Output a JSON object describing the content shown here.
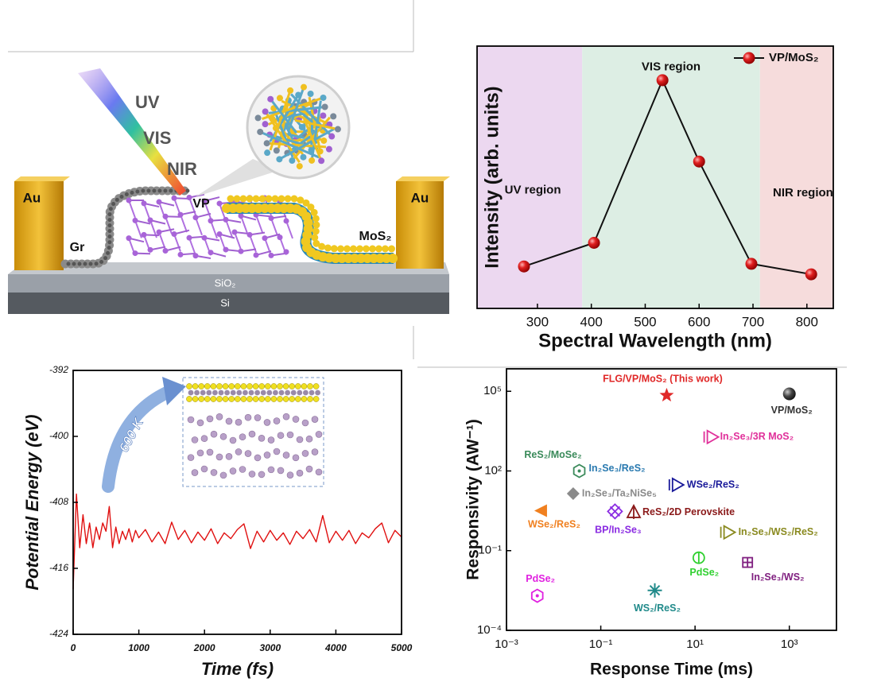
{
  "schematic": {
    "uv": "UV",
    "vis": "VIS",
    "nir": "NIR",
    "au_left": "Au",
    "au_right": "Au",
    "vp": "VP",
    "gr": "Gr",
    "mos2": "MoS₂",
    "sio2": "SiO₂",
    "si": "Si"
  },
  "chart_data": [
    {
      "type": "line",
      "x_label": "Spectral Wavelength (nm)",
      "y_label": "Intensity (arb. units)",
      "x": [
        275,
        405,
        532,
        600,
        697,
        808
      ],
      "series": [
        {
          "name": "VP/MoS₂",
          "color": "#e01b1b",
          "line_color": "#111111",
          "values": [
            16,
            25,
            87,
            56,
            17,
            13
          ]
        }
      ],
      "xlim": [
        188,
        849
      ],
      "ylim": [
        0,
        100
      ],
      "xticks": [
        300,
        400,
        500,
        600,
        700,
        800
      ],
      "markers": true,
      "legend": "upper right",
      "regions": [
        {
          "label": "UV region",
          "start": 188,
          "end": 383,
          "color": "#ecd8f0"
        },
        {
          "label": "VIS region",
          "start": 383,
          "end": 713,
          "color": "#ddeee4"
        },
        {
          "label": "NIR region",
          "start": 713,
          "end": 849,
          "color": "#f6dcdc"
        }
      ]
    },
    {
      "type": "line",
      "x_label": "Time (fs)",
      "y_label": "Potential Energy (eV)",
      "annotation": "600 K",
      "x": [
        0,
        50,
        100,
        150,
        200,
        250,
        300,
        350,
        400,
        450,
        500,
        550,
        600,
        650,
        700,
        750,
        800,
        850,
        900,
        950,
        1000,
        1100,
        1200,
        1300,
        1400,
        1500,
        1600,
        1700,
        1800,
        1900,
        2000,
        2100,
        2200,
        2300,
        2400,
        2500,
        2600,
        2700,
        2800,
        2900,
        3000,
        3100,
        3200,
        3300,
        3400,
        3500,
        3600,
        3700,
        3800,
        3900,
        4000,
        4100,
        4200,
        4300,
        4400,
        4500,
        4600,
        4700,
        4800,
        4900,
        5000
      ],
      "series": [
        {
          "color": "#e01010",
          "values": [
            -418.5,
            -407,
            -413.5,
            -409.5,
            -413,
            -410.5,
            -413.5,
            -411,
            -412.5,
            -410.5,
            -411.5,
            -408.5,
            -413.5,
            -411,
            -413,
            -411.5,
            -412.5,
            -411.2,
            -412.8,
            -411.4,
            -412.3,
            -411.3,
            -412.8,
            -411.6,
            -413.0,
            -410.4,
            -412.5,
            -411.4,
            -412.9,
            -411.6,
            -412.6,
            -411.2,
            -413.0,
            -411.7,
            -412.4,
            -411.3,
            -410.6,
            -413.6,
            -411.5,
            -412.8,
            -411.4,
            -412.6,
            -411.7,
            -413.1,
            -411.5,
            -412.4,
            -411.3,
            -412.8,
            -409.6,
            -412.9,
            -411.5,
            -412.6,
            -411.4,
            -413.0,
            -411.7,
            -412.3,
            -411.2,
            -410.5,
            -412.9,
            -411.4,
            -412.2
          ]
        }
      ],
      "xlim": [
        0,
        5000
      ],
      "ylim": [
        -424,
        -392
      ],
      "xticks": [
        0,
        1000,
        2000,
        3000,
        4000,
        5000
      ],
      "yticks": [
        -424,
        -416,
        -408,
        -400,
        -392
      ]
    },
    {
      "type": "scatter",
      "x_label": "Response Time (ms)",
      "y_label": "Responsivity (AW⁻¹)",
      "xscale": "log",
      "yscale": "log",
      "xlim": [
        0.001,
        10000
      ],
      "ylim": [
        0.0001,
        700000
      ],
      "xticks": [
        {
          "value": 0.001,
          "label": "10⁻³"
        },
        {
          "value": 0.1,
          "label": "10⁻¹"
        },
        {
          "value": 10,
          "label": "10¹"
        },
        {
          "value": 1000,
          "label": "10³"
        }
      ],
      "yticks": [
        {
          "value": 0.0001,
          "label": "10⁻⁴"
        },
        {
          "value": 0.1,
          "label": "10⁻¹"
        },
        {
          "value": 100,
          "label": "10²"
        },
        {
          "value": 100000,
          "label": "10⁵"
        }
      ],
      "points": [
        {
          "name": "FLG/VP/MoS₂ (This work)",
          "x": 2.5,
          "y": 70000,
          "color": "#e02828",
          "marker": "star"
        },
        {
          "name": "VP/MoS₂",
          "x": 1000,
          "y": 80000,
          "color": "#333333",
          "marker": "sphere"
        },
        {
          "name": "In₂Se₃/3R MoS₂",
          "x": 23,
          "y": 1900,
          "color": "#e0309a",
          "marker": "tri-right-open"
        },
        {
          "name": "ReS₂/MoSe₂",
          "x": 0.035,
          "y": 100,
          "color": "#3a8a5a",
          "marker": "hexagon"
        },
        {
          "name": "In₂Se₃/ReS₂",
          "x": 0.035,
          "y": 100,
          "color": "#2a7ab0",
          "marker": "none"
        },
        {
          "name": "WSe₂/ReS₂",
          "x": 4.2,
          "y": 30,
          "color": "#1a1a9a",
          "marker": "tri-right-open"
        },
        {
          "name": "In₂Se₃/Ta₂NiSe₅",
          "x": 0.026,
          "y": 14,
          "color": "#8a8a8a",
          "marker": "diamond"
        },
        {
          "name": "BP/In₂Se₃",
          "x": 0.2,
          "y": 3.0,
          "color": "#8a2be2",
          "marker": "xdiamond"
        },
        {
          "name": "ReS₂/2D Perovskite",
          "x": 0.5,
          "y": 2.7,
          "color": "#8b1a1a",
          "marker": "tri-up-open"
        },
        {
          "name": "WSe₂/ReS₂",
          "x": 0.0053,
          "y": 3.2,
          "color": "#f08020",
          "marker": "tri-left-filled"
        },
        {
          "name": "In₂Se₃/WS₂/ReS₂",
          "x": 52,
          "y": 0.49,
          "color": "#8a8a20",
          "marker": "tri-right-open"
        },
        {
          "name": "PdSe₂",
          "x": 12,
          "y": 0.054,
          "color": "#30d030",
          "marker": "circle-bar"
        },
        {
          "name": "In₂Se₃/WS₂",
          "x": 130,
          "y": 0.036,
          "color": "#802080",
          "marker": "square-plus"
        },
        {
          "name": "WS₂/ReS₂",
          "x": 1.4,
          "y": 0.0032,
          "color": "#208a8a",
          "marker": "asterisk"
        },
        {
          "name": "PdSe₂",
          "x": 0.0045,
          "y": 0.002,
          "color": "#e020e0",
          "marker": "hexagon"
        }
      ]
    }
  ]
}
